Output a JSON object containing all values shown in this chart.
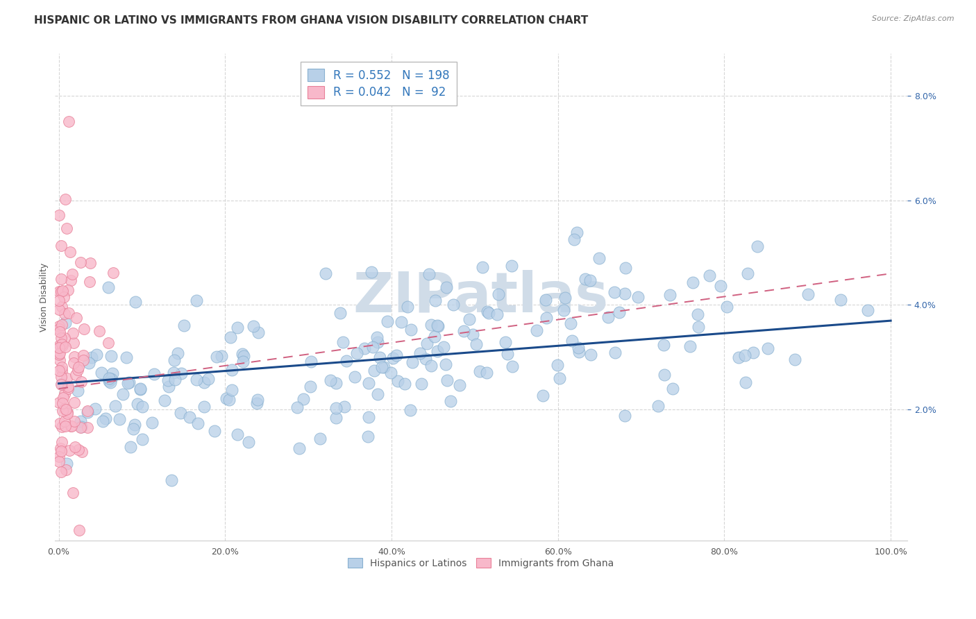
{
  "title": "HISPANIC OR LATINO VS IMMIGRANTS FROM GHANA VISION DISABILITY CORRELATION CHART",
  "source": "Source: ZipAtlas.com",
  "ylabel": "Vision Disability",
  "xlim": [
    -0.005,
    1.02
  ],
  "ylim": [
    -0.005,
    0.088
  ],
  "yticks": [
    0.02,
    0.04,
    0.06,
    0.08
  ],
  "xticks": [
    0.0,
    0.2,
    0.4,
    0.6,
    0.8,
    1.0
  ],
  "blue_R": 0.552,
  "blue_N": 198,
  "pink_R": 0.042,
  "pink_N": 92,
  "blue_color": "#b8d0e8",
  "blue_edge": "#88b0d0",
  "pink_color": "#f8b8ca",
  "pink_edge": "#e88098",
  "blue_line_color": "#1a4a8a",
  "pink_line_color": "#d06080",
  "watermark_color": "#d0dce8",
  "legend_blue_label": "Hispanics or Latinos",
  "legend_pink_label": "Immigrants from Ghana",
  "title_fontsize": 11,
  "ylabel_fontsize": 9,
  "tick_fontsize": 9,
  "blue_seed": 12,
  "pink_seed": 55
}
